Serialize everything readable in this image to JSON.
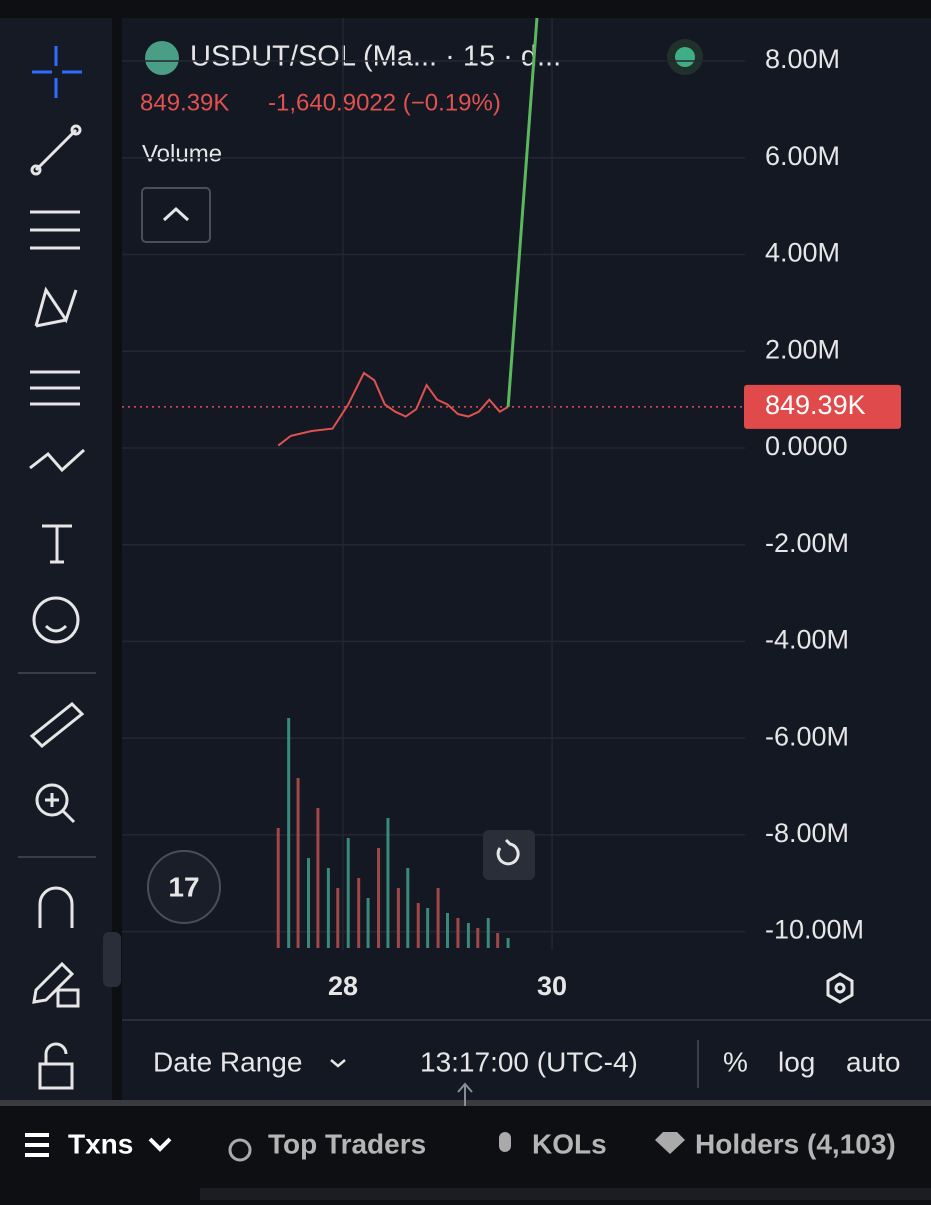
{
  "header": {
    "title": "USDUT/SOL (Ma... · 15 · d...",
    "change": "-1,640.9022 (−0.19%)"
  },
  "indicator": "Volume",
  "chart_data": {
    "type": "line",
    "x": [
      27.38,
      27.5,
      27.7,
      27.9,
      28.05,
      28.2,
      28.3,
      28.4,
      28.5,
      28.6,
      28.7,
      28.8,
      28.9,
      29.0,
      29.1,
      29.2,
      29.3,
      29.4,
      29.5,
      29.58,
      29.856
    ],
    "series": [
      {
        "color": "#e0524f",
        "values": [
          50000,
          250000,
          350000,
          400000,
          900000,
          1550000,
          1400000,
          900000,
          750000,
          650000,
          800000,
          1300000,
          1000000,
          900000,
          700000,
          650000,
          750000,
          1000000,
          750000,
          849390,
          null
        ]
      },
      {
        "color": "#5cb85c",
        "values": [
          null,
          null,
          null,
          null,
          null,
          null,
          null,
          null,
          null,
          null,
          null,
          null,
          null,
          null,
          null,
          null,
          null,
          null,
          null,
          849390,
          8890000
        ]
      }
    ],
    "volume": {
      "x": [
        27.38,
        27.48,
        27.57,
        27.67,
        27.76,
        27.86,
        27.95,
        28.05,
        28.15,
        28.24,
        28.34,
        28.43,
        28.53,
        28.62,
        28.72,
        28.81,
        28.91,
        29.0,
        29.1,
        29.2,
        29.29,
        29.39,
        29.48,
        29.58
      ],
      "values": [
        120,
        230,
        170,
        90,
        140,
        80,
        60,
        110,
        70,
        50,
        100,
        130,
        60,
        80,
        45,
        40,
        60,
        35,
        30,
        25,
        20,
        30,
        15,
        10
      ]
    },
    "xlim": [
      25.885,
      31.847
    ],
    "xticks": [
      28,
      30
    ],
    "ylim": [
      -10380000,
      8890000
    ],
    "yticks": [
      {
        "value": 8000000,
        "label": "8.00M"
      },
      {
        "value": 6000000,
        "label": "6.00M"
      },
      {
        "value": 4000000,
        "label": "4.00M"
      },
      {
        "value": 2000000,
        "label": "2.00M"
      },
      {
        "value": 0,
        "label": "0.0000"
      },
      {
        "value": -2000000,
        "label": "-2.00M"
      },
      {
        "value": -4000000,
        "label": "-4.00M"
      },
      {
        "value": -6000000,
        "label": "-6.00M"
      },
      {
        "value": -8000000,
        "label": "-8.00M"
      },
      {
        "value": -10000000,
        "label": "-10.00M"
      }
    ],
    "last_price": {
      "value": 849390,
      "label": "849.39K"
    }
  },
  "footer": {
    "date_range": "Date Range",
    "time": "13:17:00 (UTC-4)",
    "percent": "%",
    "log": "log",
    "auto": "auto"
  },
  "tabs": [
    "Txns",
    "Top Traders",
    "KOLs",
    "Holders (4,103)"
  ]
}
